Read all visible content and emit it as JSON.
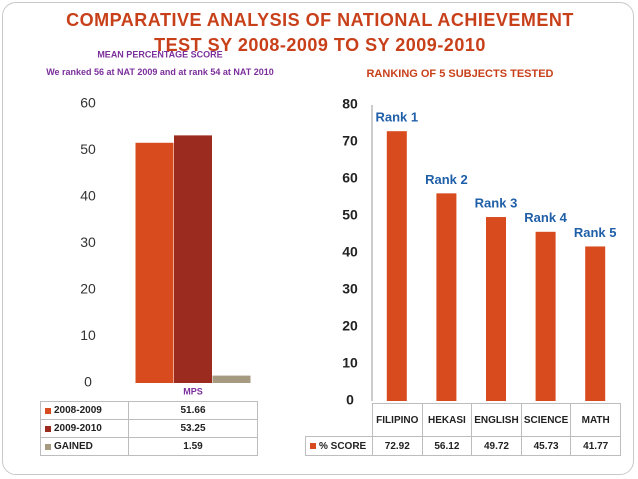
{
  "title": "COMPARATIVE ANALYSIS OF NATIONAL ACHIEVEMENT TEST SY 2008-2009 TO SY 2009-2010",
  "chart_data": [
    {
      "type": "bar",
      "title": "MEAN PERCENTAGE SCORE",
      "subtitle": "We ranked 56 at  NAT 2009 and at rank 54 at NAT 2010",
      "categories": [
        "MPS"
      ],
      "series": [
        {
          "name": "2008-2009",
          "color": "#d84b1e",
          "values": [
            51.66
          ]
        },
        {
          "name": "2009-2010",
          "color": "#9b2b1e",
          "values": [
            53.25
          ]
        },
        {
          "name": "GAINED",
          "color": "#a69a80",
          "values": [
            1.59
          ]
        }
      ],
      "ylim": [
        0,
        60
      ],
      "yticks": [
        0,
        10,
        20,
        30,
        40,
        50,
        60
      ]
    },
    {
      "type": "bar",
      "title": "RANKING OF 5 SUBJECTS TESTED",
      "categories": [
        "FILIPINO",
        "HEKASI",
        "ENGLISH",
        "SCIENCE",
        "MATH"
      ],
      "series": [
        {
          "name": "% SCORE",
          "color": "#d84b1e",
          "values": [
            72.92,
            56.12,
            49.72,
            45.73,
            41.77
          ]
        }
      ],
      "annotations": [
        "Rank 1",
        "Rank 2",
        "Rank 3",
        "Rank 4",
        "Rank 5"
      ],
      "ylim": [
        0,
        80
      ],
      "yticks": [
        0,
        10,
        20,
        30,
        40,
        50,
        60,
        70,
        80
      ]
    }
  ]
}
